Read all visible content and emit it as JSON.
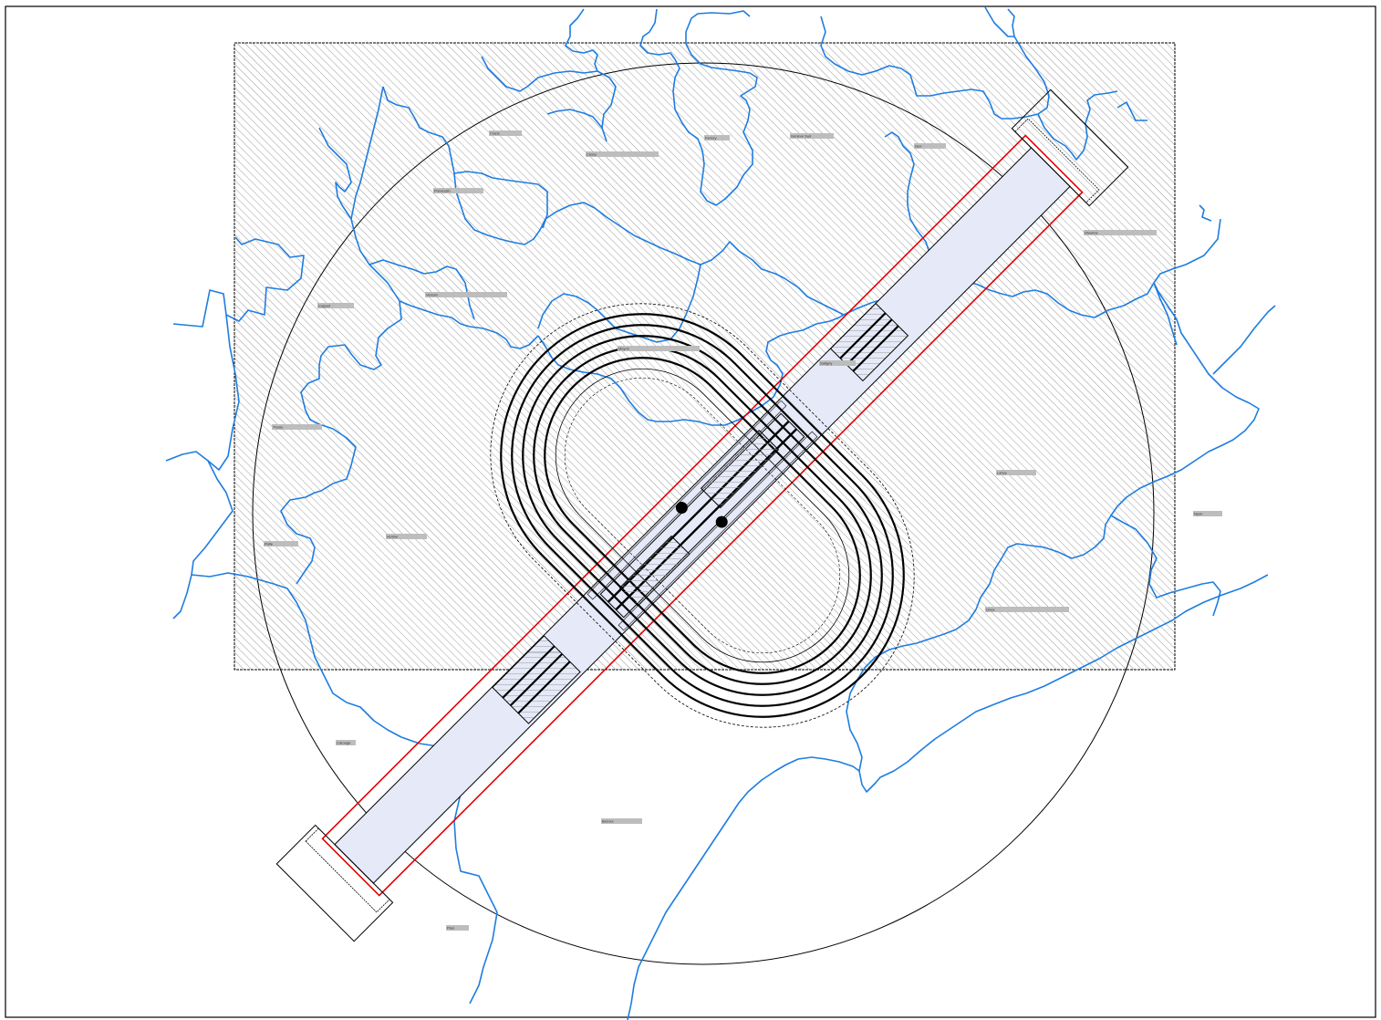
{
  "colors": {
    "frame": "#000000",
    "hatch": "#9a9a9a",
    "water": "#1e7de0",
    "corridor_outline": "#e00000",
    "corridor_fill": "#e6e9f7",
    "label_box": "#bdbdbd",
    "background": "#ffffff"
  },
  "labels": [
    {
      "id": "Crans",
      "text": "Crans"
    },
    {
      "id": "Cessy",
      "text": "Cessy"
    },
    {
      "id": "Prevessin",
      "text": "Prévessin"
    },
    {
      "id": "Ferney",
      "text": "Ferney"
    },
    {
      "id": "GeneveSud",
      "text": "Genève Sud"
    },
    {
      "id": "Gex",
      "text": "Gex"
    },
    {
      "id": "Divonne",
      "text": "Divonne"
    },
    {
      "id": "Coppet",
      "text": "Coppet"
    },
    {
      "id": "Versoix",
      "text": "Versoix"
    },
    {
      "id": "Meyrin",
      "text": "Meyrin"
    },
    {
      "id": "Satigny",
      "text": "Satigny"
    },
    {
      "id": "Lancy",
      "text": "Lancy"
    },
    {
      "id": "Thoiry",
      "text": "Thoiry"
    },
    {
      "id": "Nyon",
      "text": "Nyon"
    },
    {
      "id": "Rolle",
      "text": "Rolle"
    },
    {
      "id": "Vernier",
      "text": "Vernier"
    },
    {
      "id": "Onex",
      "text": "Onex"
    },
    {
      "id": "Carouge",
      "text": "Carouge"
    },
    {
      "id": "Bernex",
      "text": "Bernex"
    },
    {
      "id": "Plan",
      "text": "Plan"
    }
  ]
}
